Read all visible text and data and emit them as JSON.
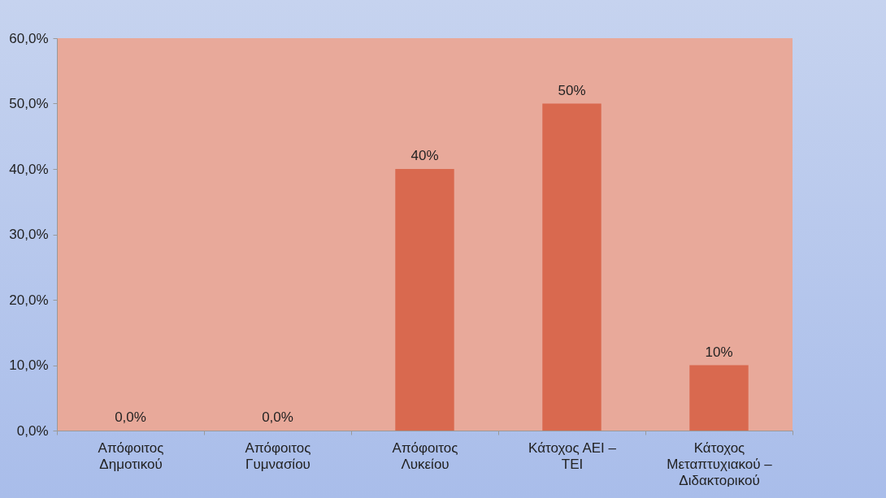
{
  "chart_data": {
    "type": "bar",
    "categories": [
      "Απόφοιτος Δημοτικού",
      "Απόφοιτος Γυμνασίου",
      "Απόφοιτος Λυκείου",
      "Κάτοχος ΑΕΙ – ΤΕΙ",
      "Κάτοχος Μεταπτυχιακού – Διδακτορικού"
    ],
    "values": [
      0,
      0,
      40,
      50,
      10
    ],
    "value_labels": [
      "0,0%",
      "0,0%",
      "40%",
      "50%",
      "10%"
    ],
    "color": "#d9694f",
    "ylim": [
      0,
      60
    ],
    "yticks": [
      {
        "value": 0,
        "label": "0,0%"
      },
      {
        "value": 10,
        "label": "10,0%"
      },
      {
        "value": 20,
        "label": "20,0%"
      },
      {
        "value": 30,
        "label": "30,0%"
      },
      {
        "value": 40,
        "label": "40,0%"
      },
      {
        "value": 50,
        "label": "50,0%"
      },
      {
        "value": 60,
        "label": "60,0%"
      }
    ],
    "grid": false
  }
}
